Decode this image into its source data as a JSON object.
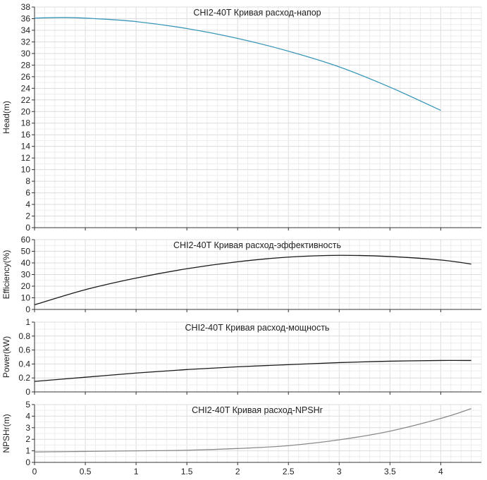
{
  "chart_data": [
    {
      "type": "line",
      "title": "CHI2-40T Кривая расход-напор",
      "ylabel": "Head(m)",
      "xlabel": "",
      "xlim": [
        0,
        4.4
      ],
      "ylim": [
        0,
        38
      ],
      "x_ticks": [
        "0",
        "0.5",
        "1",
        "1.5",
        "2",
        "2.5",
        "3",
        "3.5",
        "4"
      ],
      "y_ticks": [
        "0",
        "2",
        "4",
        "6",
        "8",
        "10",
        "12",
        "14",
        "16",
        "18",
        "20",
        "22",
        "24",
        "26",
        "28",
        "30",
        "32",
        "34",
        "36",
        "38"
      ],
      "grid": true,
      "color": "#3a97b8",
      "series": [
        {
          "x": [
            0,
            0.3,
            0.6,
            1.0,
            1.5,
            2.0,
            2.5,
            3.0,
            3.5,
            4.0
          ],
          "values": [
            36.1,
            36.2,
            36.0,
            35.5,
            34.3,
            32.6,
            30.4,
            27.7,
            24.2,
            20.2
          ]
        }
      ]
    },
    {
      "type": "line",
      "title": "CHI2-40T Кривая расход-эффективность",
      "ylabel": "Efficiency(%)",
      "xlabel": "",
      "xlim": [
        0,
        4.4
      ],
      "ylim": [
        0,
        60
      ],
      "y_ticks": [
        "0",
        "10",
        "20",
        "30",
        "40",
        "50",
        "60"
      ],
      "grid": true,
      "color": "#1a1a1a",
      "series": [
        {
          "x": [
            0,
            0.5,
            1.0,
            1.5,
            2.0,
            2.5,
            3.0,
            3.5,
            4.0,
            4.3
          ],
          "values": [
            4,
            17,
            27,
            35,
            41,
            45,
            46.5,
            45.5,
            42.5,
            39
          ]
        }
      ]
    },
    {
      "type": "line",
      "title": "CHI2-40T Кривая расход-мощность",
      "ylabel": "Power(kW)",
      "xlabel": "",
      "xlim": [
        0,
        4.4
      ],
      "ylim": [
        0,
        1
      ],
      "y_ticks": [
        "0",
        "0.2",
        "0.4",
        "0.6",
        "0.8",
        "1"
      ],
      "grid": true,
      "color": "#1a1a1a",
      "series": [
        {
          "x": [
            0,
            0.5,
            1.0,
            1.5,
            2.0,
            2.5,
            3.0,
            3.5,
            4.0,
            4.3
          ],
          "values": [
            0.15,
            0.21,
            0.27,
            0.32,
            0.36,
            0.39,
            0.42,
            0.44,
            0.45,
            0.45
          ]
        }
      ]
    },
    {
      "type": "line",
      "title": "CHI2-40T Кривая расход-NPSHr",
      "ylabel": "NPSHr(m)",
      "xlabel": "",
      "xlim": [
        0,
        4.4
      ],
      "ylim": [
        0,
        5
      ],
      "y_ticks": [
        "0",
        "1",
        "2",
        "3",
        "4",
        "5"
      ],
      "x_ticks": [
        "0",
        "0.5",
        "1",
        "1.5",
        "2",
        "2.5",
        "3",
        "3.5",
        "4"
      ],
      "grid": true,
      "color": "#8a8a8a",
      "series": [
        {
          "x": [
            0,
            0.5,
            1.0,
            1.5,
            2.0,
            2.5,
            3.0,
            3.5,
            4.0,
            4.3
          ],
          "values": [
            0.9,
            0.95,
            1.0,
            1.05,
            1.2,
            1.45,
            1.95,
            2.7,
            3.8,
            4.65
          ]
        }
      ]
    }
  ]
}
